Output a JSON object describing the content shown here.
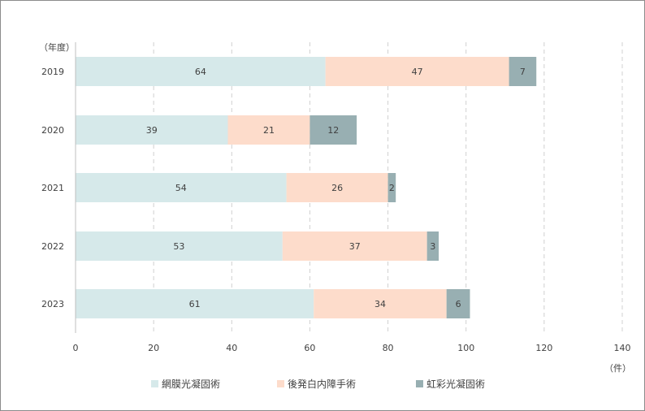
{
  "chart_data": {
    "type": "bar",
    "orientation": "horizontal",
    "stacked": true,
    "categories": [
      "2019",
      "2020",
      "2021",
      "2022",
      "2023"
    ],
    "series": [
      {
        "name": "網膜光凝固術",
        "values": [
          64,
          39,
          54,
          53,
          61
        ],
        "color": "#d6e9ea"
      },
      {
        "name": "後発白内障手術",
        "values": [
          47,
          21,
          26,
          37,
          34
        ],
        "color": "#fddccb"
      },
      {
        "name": "虹彩光凝固術",
        "values": [
          7,
          12,
          2,
          3,
          6
        ],
        "color": "#98afb2"
      }
    ],
    "category_axis_label": "（年度）",
    "value_axis_unit": "（件）",
    "xlim": [
      0,
      140
    ],
    "xticks": [
      0,
      20,
      40,
      60,
      80,
      100,
      120,
      140
    ],
    "grid": "vertical dashed",
    "legend_position": "bottom"
  }
}
